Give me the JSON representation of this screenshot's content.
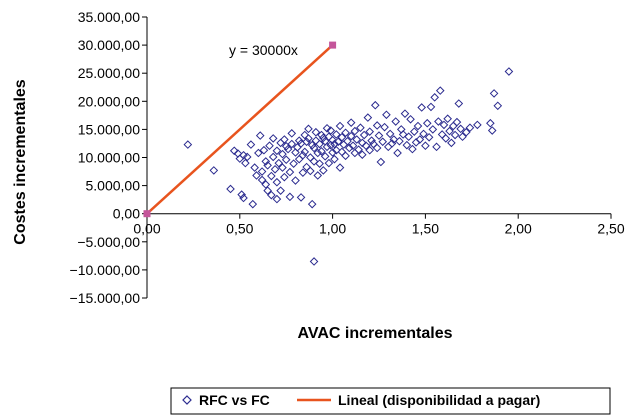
{
  "chart_data": {
    "type": "scatter",
    "xlabel": "AVAC incrementales",
    "ylabel": "Costes incrementales",
    "xlim": [
      0,
      2.5
    ],
    "ylim": [
      -15000,
      35000
    ],
    "x_ticks": [
      "0,00",
      "0,50",
      "1,00",
      "1,50",
      "2,00",
      "2,50"
    ],
    "y_ticks": [
      "35.000,00",
      "30.000,00",
      "25.000,00",
      "20.000,00",
      "15.000,00",
      "10.000,00",
      "5.000,00",
      "0,00",
      "−5.000,00",
      "−10.000,00",
      "−15.000,00"
    ],
    "annotation": "y = 30000x",
    "grid": false,
    "legend_position": "bottom",
    "colors": {
      "scatter": "#2b2b8f",
      "line": "#e8541e",
      "line_marker": "#c4559a"
    },
    "series": [
      {
        "name": "RFC vs FC",
        "kind": "scatter",
        "marker": "diamond-open",
        "points": [
          [
            0.22,
            12300
          ],
          [
            0.36,
            7700
          ],
          [
            0.45,
            4400
          ],
          [
            0.47,
            11200
          ],
          [
            0.49,
            10700
          ],
          [
            0.5,
            9800
          ],
          [
            0.51,
            3400
          ],
          [
            0.52,
            2800
          ],
          [
            0.52,
            10400
          ],
          [
            0.53,
            9000
          ],
          [
            0.54,
            10100
          ],
          [
            0.56,
            12300
          ],
          [
            0.57,
            1700
          ],
          [
            0.58,
            8200
          ],
          [
            0.59,
            6800
          ],
          [
            0.6,
            10800
          ],
          [
            0.61,
            13900
          ],
          [
            0.62,
            6000
          ],
          [
            0.62,
            7500
          ],
          [
            0.63,
            11300
          ],
          [
            0.64,
            5200
          ],
          [
            0.64,
            9300
          ],
          [
            0.65,
            4100
          ],
          [
            0.65,
            8600
          ],
          [
            0.66,
            12100
          ],
          [
            0.67,
            3300
          ],
          [
            0.67,
            6700
          ],
          [
            0.68,
            13400
          ],
          [
            0.68,
            10100
          ],
          [
            0.69,
            7900
          ],
          [
            0.7,
            2600
          ],
          [
            0.7,
            5600
          ],
          [
            0.7,
            11200
          ],
          [
            0.71,
            9000
          ],
          [
            0.72,
            12600
          ],
          [
            0.72,
            4100
          ],
          [
            0.73,
            8200
          ],
          [
            0.73,
            10600
          ],
          [
            0.74,
            6500
          ],
          [
            0.74,
            13200
          ],
          [
            0.75,
            12000
          ],
          [
            0.75,
            9600
          ],
          [
            0.76,
            11500
          ],
          [
            0.77,
            3000
          ],
          [
            0.77,
            7400
          ],
          [
            0.78,
            12400
          ],
          [
            0.78,
            14300
          ],
          [
            0.79,
            8900
          ],
          [
            0.8,
            10900
          ],
          [
            0.8,
            5900
          ],
          [
            0.81,
            11800
          ],
          [
            0.82,
            13000
          ],
          [
            0.82,
            9700
          ],
          [
            0.83,
            2900
          ],
          [
            0.83,
            12500
          ],
          [
            0.84,
            10400
          ],
          [
            0.84,
            7300
          ],
          [
            0.85,
            14000
          ],
          [
            0.85,
            11000
          ],
          [
            0.86,
            12800
          ],
          [
            0.86,
            8300
          ],
          [
            0.87,
            13400
          ],
          [
            0.87,
            15100
          ],
          [
            0.88,
            10000
          ],
          [
            0.88,
            7600
          ],
          [
            0.89,
            12200
          ],
          [
            0.89,
            1700
          ],
          [
            0.9,
            -8500
          ],
          [
            0.9,
            9300
          ],
          [
            0.9,
            11700
          ],
          [
            0.91,
            14500
          ],
          [
            0.91,
            13000
          ],
          [
            0.92,
            6800
          ],
          [
            0.92,
            10800
          ],
          [
            0.93,
            12400
          ],
          [
            0.93,
            8900
          ],
          [
            0.94,
            14000
          ],
          [
            0.94,
            11100
          ],
          [
            0.95,
            13500
          ],
          [
            0.95,
            7700
          ],
          [
            0.96,
            12900
          ],
          [
            0.96,
            10200
          ],
          [
            0.97,
            15200
          ],
          [
            0.97,
            11900
          ],
          [
            0.98,
            9000
          ],
          [
            0.98,
            13700
          ],
          [
            0.99,
            12200
          ],
          [
            0.99,
            14800
          ],
          [
            1.0,
            10900
          ],
          [
            1.0,
            13100
          ],
          [
            1.01,
            12400
          ],
          [
            1.01,
            9700
          ],
          [
            1.02,
            14100
          ],
          [
            1.02,
            11300
          ],
          [
            1.03,
            12800
          ],
          [
            1.04,
            15600
          ],
          [
            1.04,
            8200
          ],
          [
            1.05,
            13600
          ],
          [
            1.05,
            11000
          ],
          [
            1.06,
            12300
          ],
          [
            1.07,
            14400
          ],
          [
            1.07,
            10300
          ],
          [
            1.08,
            12900
          ],
          [
            1.09,
            11700
          ],
          [
            1.1,
            13800
          ],
          [
            1.1,
            16200
          ],
          [
            1.11,
            12100
          ],
          [
            1.12,
            10800
          ],
          [
            1.12,
            14700
          ],
          [
            1.13,
            13200
          ],
          [
            1.14,
            11400
          ],
          [
            1.15,
            15300
          ],
          [
            1.16,
            12600
          ],
          [
            1.16,
            10500
          ],
          [
            1.17,
            14000
          ],
          [
            1.18,
            12100
          ],
          [
            1.19,
            17100
          ],
          [
            1.2,
            11300
          ],
          [
            1.2,
            14600
          ],
          [
            1.21,
            13000
          ],
          [
            1.22,
            12400
          ],
          [
            1.23,
            19300
          ],
          [
            1.24,
            15700
          ],
          [
            1.24,
            11700
          ],
          [
            1.25,
            13900
          ],
          [
            1.26,
            9200
          ],
          [
            1.27,
            12800
          ],
          [
            1.28,
            15400
          ],
          [
            1.29,
            17600
          ],
          [
            1.3,
            11900
          ],
          [
            1.31,
            14200
          ],
          [
            1.32,
            12500
          ],
          [
            1.33,
            13200
          ],
          [
            1.34,
            16400
          ],
          [
            1.35,
            10800
          ],
          [
            1.36,
            12900
          ],
          [
            1.37,
            15000
          ],
          [
            1.38,
            14100
          ],
          [
            1.39,
            17800
          ],
          [
            1.4,
            12200
          ],
          [
            1.41,
            13700
          ],
          [
            1.42,
            16800
          ],
          [
            1.43,
            11500
          ],
          [
            1.44,
            14600
          ],
          [
            1.45,
            12700
          ],
          [
            1.46,
            15600
          ],
          [
            1.47,
            13200
          ],
          [
            1.48,
            18900
          ],
          [
            1.49,
            14200
          ],
          [
            1.5,
            12100
          ],
          [
            1.51,
            16100
          ],
          [
            1.52,
            13600
          ],
          [
            1.53,
            19000
          ],
          [
            1.54,
            15000
          ],
          [
            1.55,
            20700
          ],
          [
            1.56,
            11900
          ],
          [
            1.57,
            16400
          ],
          [
            1.58,
            21900
          ],
          [
            1.59,
            14100
          ],
          [
            1.6,
            15800
          ],
          [
            1.61,
            13400
          ],
          [
            1.62,
            16900
          ],
          [
            1.63,
            14700
          ],
          [
            1.64,
            12600
          ],
          [
            1.65,
            15600
          ],
          [
            1.66,
            14000
          ],
          [
            1.67,
            16300
          ],
          [
            1.68,
            19600
          ],
          [
            1.69,
            15100
          ],
          [
            1.7,
            13700
          ],
          [
            1.72,
            14500
          ],
          [
            1.74,
            15300
          ],
          [
            1.78,
            15800
          ],
          [
            1.85,
            16100
          ],
          [
            1.86,
            14800
          ],
          [
            1.87,
            21400
          ],
          [
            1.89,
            19200
          ],
          [
            1.95,
            25300
          ]
        ]
      },
      {
        "name": "Lineal (disponibilidad a pagar)",
        "kind": "line",
        "points": [
          [
            0,
            0
          ],
          [
            1,
            30000
          ]
        ]
      }
    ]
  }
}
